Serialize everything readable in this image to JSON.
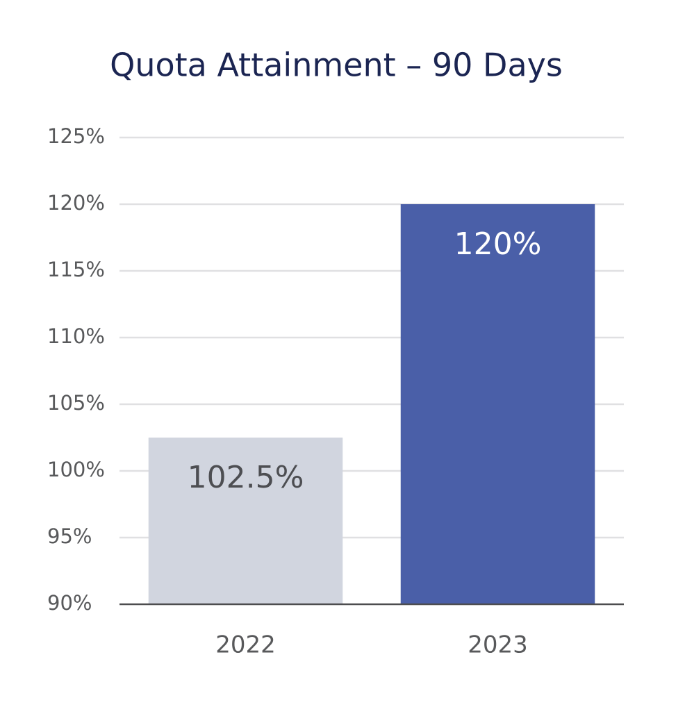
{
  "chart_data": {
    "type": "bar",
    "title": "Quota Attainment – 90 Days",
    "categories": [
      "2022",
      "2023"
    ],
    "values": [
      102.5,
      120
    ],
    "value_labels": [
      "102.5%",
      "120%"
    ],
    "colors": [
      "#d1d5df",
      "#4a5fa8"
    ],
    "ylim": [
      90,
      125
    ],
    "yticks": [
      {
        "value": 90,
        "label": "90%"
      },
      {
        "value": 95,
        "label": "95%"
      },
      {
        "value": 100,
        "label": "100%"
      },
      {
        "value": 105,
        "label": "105%"
      },
      {
        "value": 110,
        "label": "110%"
      },
      {
        "value": 115,
        "label": "115%"
      },
      {
        "value": 120,
        "label": "120%"
      },
      {
        "value": 125,
        "label": "125%"
      }
    ],
    "grid": true
  }
}
